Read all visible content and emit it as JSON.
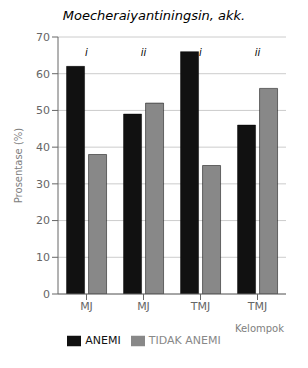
{
  "chart_data": {
    "type": "bar",
    "title": "Moecheraiyantiningsin, akk.",
    "y_label": "Prosentase (%)",
    "x_label": "Kelompok",
    "categories": [
      "MJ",
      "MJ",
      "TMJ",
      "TMJ"
    ],
    "series": [
      {
        "name": "ANEMI",
        "color": "#111111",
        "values": [
          62,
          49,
          66,
          46
        ]
      },
      {
        "name": "TIDAK ANEMI",
        "color": "#888888",
        "values": [
          38,
          52,
          35,
          56
        ]
      }
    ],
    "annotations": [
      {
        "text": "i",
        "y": 68
      },
      {
        "text": "ii",
        "y": 68
      },
      {
        "text": "i",
        "y": 68
      },
      {
        "text": "ii",
        "y": 68
      }
    ],
    "ylim": [
      0,
      70
    ],
    "yticks": [
      0,
      10,
      20,
      30,
      40,
      50,
      60,
      70
    ],
    "grid": true,
    "legend": "bottom"
  }
}
